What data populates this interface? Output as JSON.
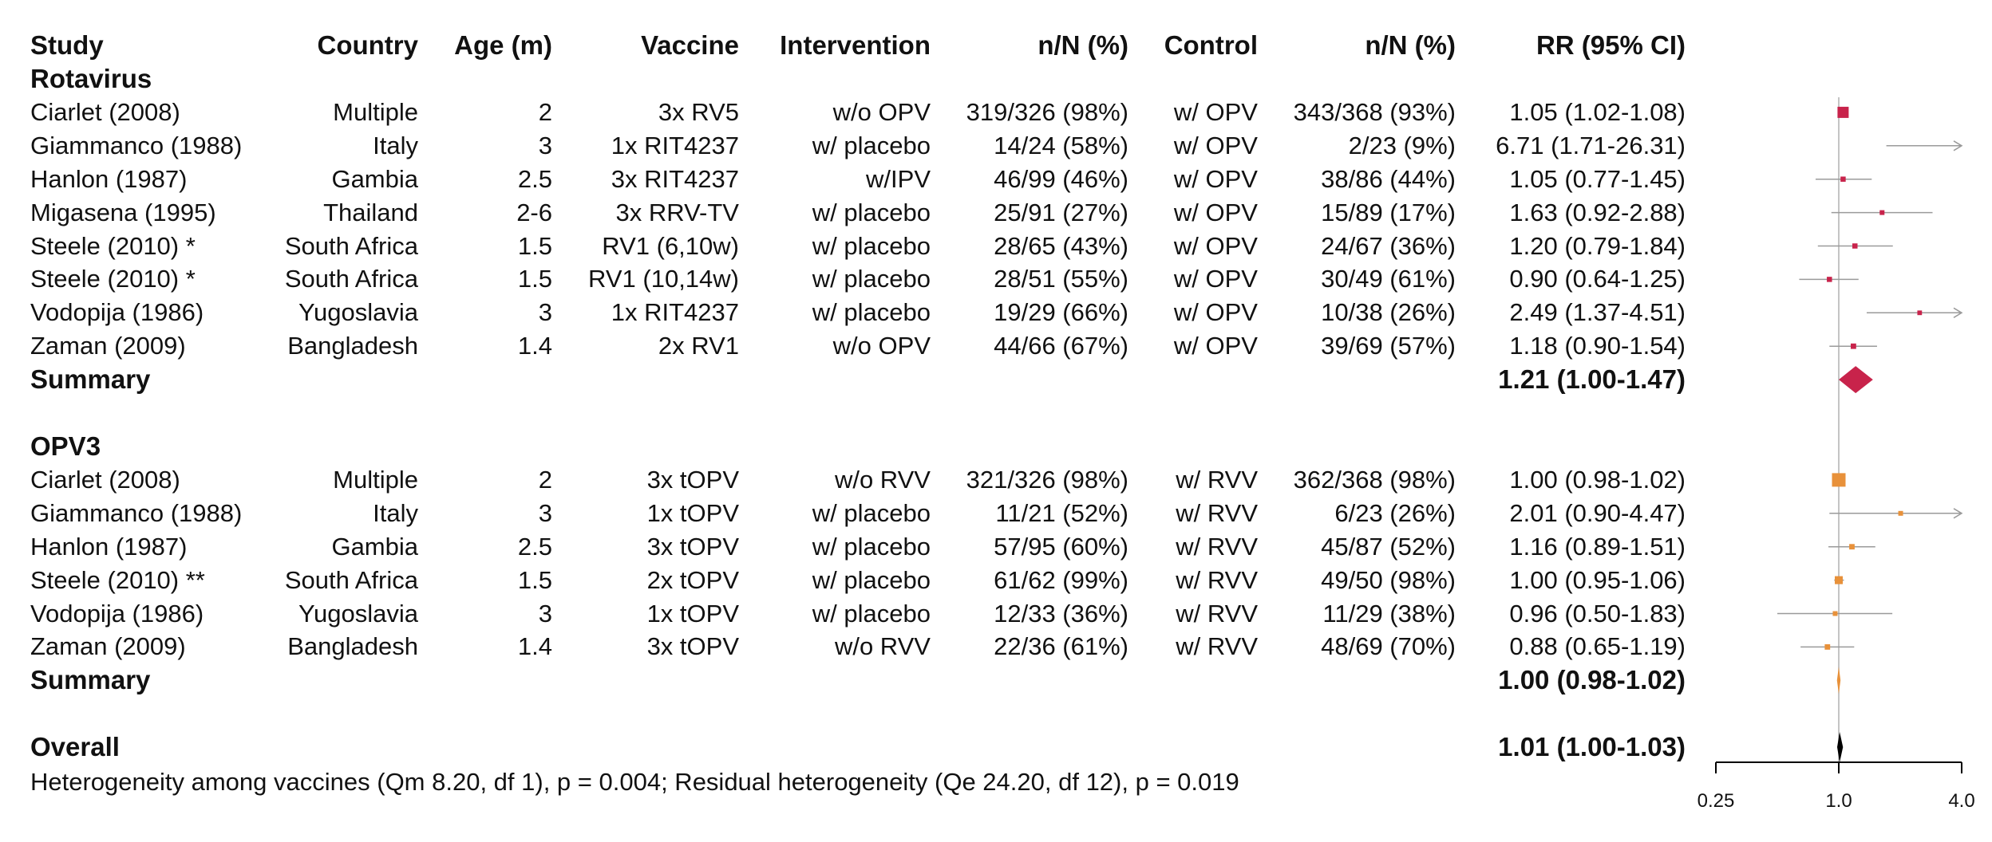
{
  "headers": {
    "study": "Study",
    "country": "Country",
    "age": "Age (m)",
    "vaccine": "Vaccine",
    "intervention": "Intervention",
    "n1": "n/N (%)",
    "control": "Control",
    "n2": "n/N (%)",
    "rr": "RR (95% CI)"
  },
  "groups": [
    {
      "name": "Rotavirus",
      "color": "#c8234b",
      "rows": [
        {
          "study": "Ciarlet (2008)",
          "country": "Multiple",
          "age": "2",
          "vaccine": "3x RV5",
          "intervention": "w/o OPV",
          "n1": "319/326 (98%)",
          "control": "w/ OPV",
          "n2": "343/368 (93%)",
          "rr": "1.05 (1.02-1.08)"
        },
        {
          "study": "Giammanco (1988)",
          "country": "Italy",
          "age": "3",
          "vaccine": "1x RIT4237",
          "intervention": "w/ placebo",
          "n1": "14/24 (58%)",
          "control": "w/ OPV",
          "n2": "2/23 (9%)",
          "rr": "6.71 (1.71-26.31)"
        },
        {
          "study": "Hanlon (1987)",
          "country": "Gambia",
          "age": "2.5",
          "vaccine": "3x RIT4237",
          "intervention": "w/IPV",
          "n1": "46/99 (46%)",
          "control": "w/ OPV",
          "n2": "38/86 (44%)",
          "rr": "1.05 (0.77-1.45)"
        },
        {
          "study": "Migasena (1995)",
          "country": "Thailand",
          "age": "2-6",
          "vaccine": "3x RRV-TV",
          "intervention": "w/ placebo",
          "n1": "25/91 (27%)",
          "control": "w/ OPV",
          "n2": "15/89 (17%)",
          "rr": "1.63 (0.92-2.88)"
        },
        {
          "study": "Steele (2010) *",
          "country": "South Africa",
          "age": "1.5",
          "vaccine": "RV1 (6,10w)",
          "intervention": "w/ placebo",
          "n1": "28/65 (43%)",
          "control": "w/ OPV",
          "n2": "24/67 (36%)",
          "rr": "1.20 (0.79-1.84)"
        },
        {
          "study": "Steele (2010) *",
          "country": "South Africa",
          "age": "1.5",
          "vaccine": "RV1 (10,14w)",
          "intervention": "w/ placebo",
          "n1": "28/51 (55%)",
          "control": "w/ OPV",
          "n2": "30/49 (61%)",
          "rr": "0.90 (0.64-1.25)"
        },
        {
          "study": "Vodopija (1986)",
          "country": "Yugoslavia",
          "age": "3",
          "vaccine": "1x RIT4237",
          "intervention": "w/ placebo",
          "n1": "19/29 (66%)",
          "control": "w/ OPV",
          "n2": "10/38 (26%)",
          "rr": "2.49 (1.37-4.51)"
        },
        {
          "study": "Zaman (2009)",
          "country": "Bangladesh",
          "age": "1.4",
          "vaccine": "2x RV1",
          "intervention": "w/o OPV",
          "n1": "44/66 (67%)",
          "control": "w/ OPV",
          "n2": "39/69 (57%)",
          "rr": "1.18 (0.90-1.54)"
        }
      ],
      "summary_label": "Summary",
      "summary_rr": "1.21 (1.00-1.47)"
    },
    {
      "name": "OPV3",
      "color": "#e8913a",
      "rows": [
        {
          "study": "Ciarlet (2008)",
          "country": "Multiple",
          "age": "2",
          "vaccine": "3x tOPV",
          "intervention": "w/o RVV",
          "n1": "321/326 (98%)",
          "control": "w/ RVV",
          "n2": "362/368 (98%)",
          "rr": "1.00 (0.98-1.02)"
        },
        {
          "study": "Giammanco (1988)",
          "country": "Italy",
          "age": "3",
          "vaccine": "1x tOPV",
          "intervention": "w/ placebo",
          "n1": "11/21 (52%)",
          "control": "w/ RVV",
          "n2": "6/23 (26%)",
          "rr": "2.01 (0.90-4.47)"
        },
        {
          "study": "Hanlon (1987)",
          "country": "Gambia",
          "age": "2.5",
          "vaccine": "3x tOPV",
          "intervention": "w/ placebo",
          "n1": "57/95 (60%)",
          "control": "w/ RVV",
          "n2": "45/87 (52%)",
          "rr": "1.16 (0.89-1.51)"
        },
        {
          "study": "Steele (2010) **",
          "country": "South Africa",
          "age": "1.5",
          "vaccine": "2x tOPV",
          "intervention": "w/ placebo",
          "n1": "61/62 (99%)",
          "control": "w/ RVV",
          "n2": "49/50 (98%)",
          "rr": "1.00 (0.95-1.06)"
        },
        {
          "study": "Vodopija (1986)",
          "country": "Yugoslavia",
          "age": "3",
          "vaccine": "1x tOPV",
          "intervention": "w/ placebo",
          "n1": "12/33 (36%)",
          "control": "w/ RVV",
          "n2": "11/29 (38%)",
          "rr": "0.96 (0.50-1.83)"
        },
        {
          "study": "Zaman (2009)",
          "country": "Bangladesh",
          "age": "1.4",
          "vaccine": "3x tOPV",
          "intervention": "w/o RVV",
          "n1": "22/36 (61%)",
          "control": "w/ RVV",
          "n2": "48/69 (70%)",
          "rr": "0.88 (0.65-1.19)"
        }
      ],
      "summary_label": "Summary",
      "summary_rr": "1.00 (0.98-1.02)"
    }
  ],
  "overall": {
    "label": "Overall",
    "rr": "1.01 (1.00-1.03)"
  },
  "footer": "Heterogeneity among vaccines (Qm 8.20, df 1), p = 0.004; Residual heterogeneity (Qe 24.20, df 12), p = 0.019",
  "chart_data": {
    "type": "forest",
    "scale": "log",
    "xlim": [
      0.25,
      4.0
    ],
    "xticks": [
      "0.25",
      "1.0",
      "4.0"
    ],
    "reference_line": 1.0,
    "series": [
      {
        "name": "Rotavirus",
        "estimates": [
          {
            "rr": 1.05,
            "lo": 1.02,
            "hi": 1.08,
            "weight": 1.0
          },
          {
            "rr": 6.71,
            "lo": 1.71,
            "hi": 26.31,
            "weight": 0.12
          },
          {
            "rr": 1.05,
            "lo": 0.77,
            "hi": 1.45,
            "weight": 0.25
          },
          {
            "rr": 1.63,
            "lo": 0.92,
            "hi": 2.88,
            "weight": 0.2
          },
          {
            "rr": 1.2,
            "lo": 0.79,
            "hi": 1.84,
            "weight": 0.25
          },
          {
            "rr": 0.9,
            "lo": 0.64,
            "hi": 1.25,
            "weight": 0.25
          },
          {
            "rr": 2.49,
            "lo": 1.37,
            "hi": 4.51,
            "weight": 0.18
          },
          {
            "rr": 1.18,
            "lo": 0.9,
            "hi": 1.54,
            "weight": 0.28
          }
        ],
        "summary": {
          "rr": 1.21,
          "lo": 1.0,
          "hi": 1.47
        }
      },
      {
        "name": "OPV3",
        "estimates": [
          {
            "rr": 1.0,
            "lo": 0.98,
            "hi": 1.02,
            "weight": 1.3
          },
          {
            "rr": 2.01,
            "lo": 0.9,
            "hi": 4.47,
            "weight": 0.2
          },
          {
            "rr": 1.16,
            "lo": 0.89,
            "hi": 1.51,
            "weight": 0.28
          },
          {
            "rr": 1.0,
            "lo": 0.95,
            "hi": 1.06,
            "weight": 0.6
          },
          {
            "rr": 0.96,
            "lo": 0.5,
            "hi": 1.83,
            "weight": 0.2
          },
          {
            "rr": 0.88,
            "lo": 0.65,
            "hi": 1.19,
            "weight": 0.28
          }
        ],
        "summary": {
          "rr": 1.0,
          "lo": 0.98,
          "hi": 1.02
        }
      }
    ],
    "overall": {
      "rr": 1.01,
      "lo": 1.0,
      "hi": 1.03
    }
  }
}
